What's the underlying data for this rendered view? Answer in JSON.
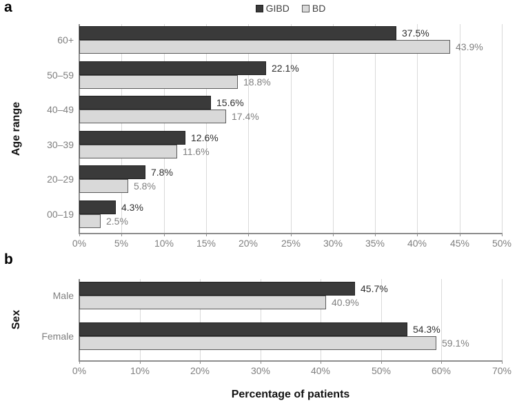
{
  "legend": {
    "items": [
      {
        "label": "GIBD",
        "fill": "#3a3a3a",
        "border": "#1f1f1f"
      },
      {
        "label": "BD",
        "fill": "#d9d9d9",
        "border": "#595959"
      }
    ]
  },
  "colors": {
    "gibd_bar": "#3a3a3a",
    "bd_bar": "#d9d9d9",
    "grid": "#d9d9d9",
    "axis": "#8c8c8c",
    "muted_text": "#7f7f7f"
  },
  "chart_data": [
    {
      "type": "bar",
      "orientation": "horizontal",
      "panel_label": "a",
      "title": "",
      "ylabel": "Age range",
      "xlabel": "",
      "xlim": [
        0,
        50
      ],
      "grid": true,
      "legend_position": "top-center",
      "tick_labels": [
        "0%",
        "5%",
        "10%",
        "15%",
        "20%",
        "25%",
        "30%",
        "35%",
        "40%",
        "45%",
        "50%"
      ],
      "categories": [
        "60+",
        "50–59",
        "40–49",
        "30–39",
        "20–29",
        "00–19"
      ],
      "series": [
        {
          "name": "GIBD",
          "values": [
            37.5,
            22.1,
            15.6,
            12.6,
            7.8,
            4.3
          ],
          "data_labels": [
            "37.5%",
            "22.1%",
            "15.6%",
            "12.6%",
            "7.8%",
            "4.3%"
          ]
        },
        {
          "name": "BD",
          "values": [
            43.9,
            18.8,
            17.4,
            11.6,
            5.8,
            2.5
          ],
          "data_labels": [
            "43.9%",
            "18.8%",
            "17.4%",
            "11.6%",
            "5.8%",
            "2.5%"
          ]
        }
      ]
    },
    {
      "type": "bar",
      "orientation": "horizontal",
      "panel_label": "b",
      "title": "",
      "ylabel": "Sex",
      "xlabel": "Percentage of patients",
      "xlim": [
        0,
        70
      ],
      "grid": true,
      "legend_position": "none",
      "tick_labels": [
        "0%",
        "10%",
        "20%",
        "30%",
        "40%",
        "50%",
        "60%",
        "70%"
      ],
      "categories": [
        "Male",
        "Female"
      ],
      "series": [
        {
          "name": "GIBD",
          "values": [
            45.7,
            54.3
          ],
          "data_labels": [
            "45.7%",
            "54.3%"
          ]
        },
        {
          "name": "BD",
          "values": [
            40.9,
            59.1
          ],
          "data_labels": [
            "40.9%",
            "59.1%"
          ]
        }
      ]
    }
  ]
}
